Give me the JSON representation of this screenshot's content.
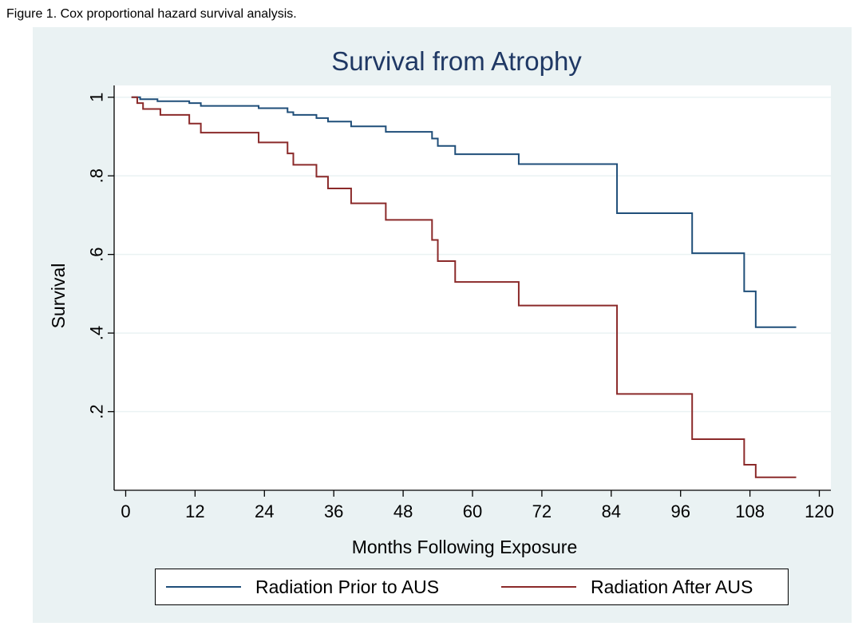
{
  "figure_caption": "Figure 1. Cox proportional hazard survival analysis.",
  "colors": {
    "panel_background": "#eaf2f3",
    "plot_background": "#ffffff",
    "title": "#1f3864",
    "series_prior": "#1f4e79",
    "series_after": "#8b2a2a",
    "grid": "#eaf2f3"
  },
  "chart_data": {
    "type": "line",
    "step": true,
    "title": "Survival from Atrophy",
    "xlabel": "Months Following Exposure",
    "ylabel": "Survival",
    "xlim": [
      -2,
      122
    ],
    "ylim": [
      0,
      1.03
    ],
    "xticks": [
      0,
      12,
      24,
      36,
      48,
      60,
      72,
      84,
      96,
      108,
      120
    ],
    "xtick_labels": [
      "0",
      "12",
      "24",
      "36",
      "48",
      "60",
      "72",
      "84",
      "96",
      "108",
      "120"
    ],
    "yticks": [
      0.2,
      0.4,
      0.6,
      0.8,
      1
    ],
    "ytick_labels": [
      ".2",
      ".4",
      ".6",
      ".8",
      "1"
    ],
    "grid": true,
    "legend_position": "bottom",
    "series": [
      {
        "name": "Radiation Prior to AUS",
        "color": "#1f4e79",
        "points": [
          [
            1,
            1.0
          ],
          [
            2.5,
            0.995
          ],
          [
            5.5,
            0.99
          ],
          [
            11,
            0.985
          ],
          [
            13,
            0.978
          ],
          [
            23,
            0.972
          ],
          [
            28,
            0.962
          ],
          [
            29,
            0.955
          ],
          [
            33,
            0.947
          ],
          [
            35,
            0.938
          ],
          [
            39,
            0.926
          ],
          [
            45,
            0.912
          ],
          [
            53,
            0.895
          ],
          [
            54,
            0.876
          ],
          [
            57,
            0.855
          ],
          [
            68,
            0.83
          ],
          [
            85,
            0.705
          ],
          [
            98,
            0.603
          ],
          [
            107,
            0.506
          ],
          [
            109,
            0.415
          ],
          [
            116,
            0.415
          ]
        ]
      },
      {
        "name": "Radiation After AUS",
        "color": "#8b2a2a",
        "points": [
          [
            1,
            1.0
          ],
          [
            2,
            0.985
          ],
          [
            3,
            0.97
          ],
          [
            6,
            0.955
          ],
          [
            11,
            0.933
          ],
          [
            13,
            0.91
          ],
          [
            23,
            0.885
          ],
          [
            28,
            0.857
          ],
          [
            29,
            0.828
          ],
          [
            33,
            0.798
          ],
          [
            35,
            0.768
          ],
          [
            39,
            0.73
          ],
          [
            45,
            0.688
          ],
          [
            53,
            0.637
          ],
          [
            54,
            0.583
          ],
          [
            57,
            0.53
          ],
          [
            68,
            0.47
          ],
          [
            85,
            0.245
          ],
          [
            98,
            0.13
          ],
          [
            107,
            0.065
          ],
          [
            109,
            0.033
          ],
          [
            116,
            0.033
          ]
        ]
      }
    ]
  }
}
